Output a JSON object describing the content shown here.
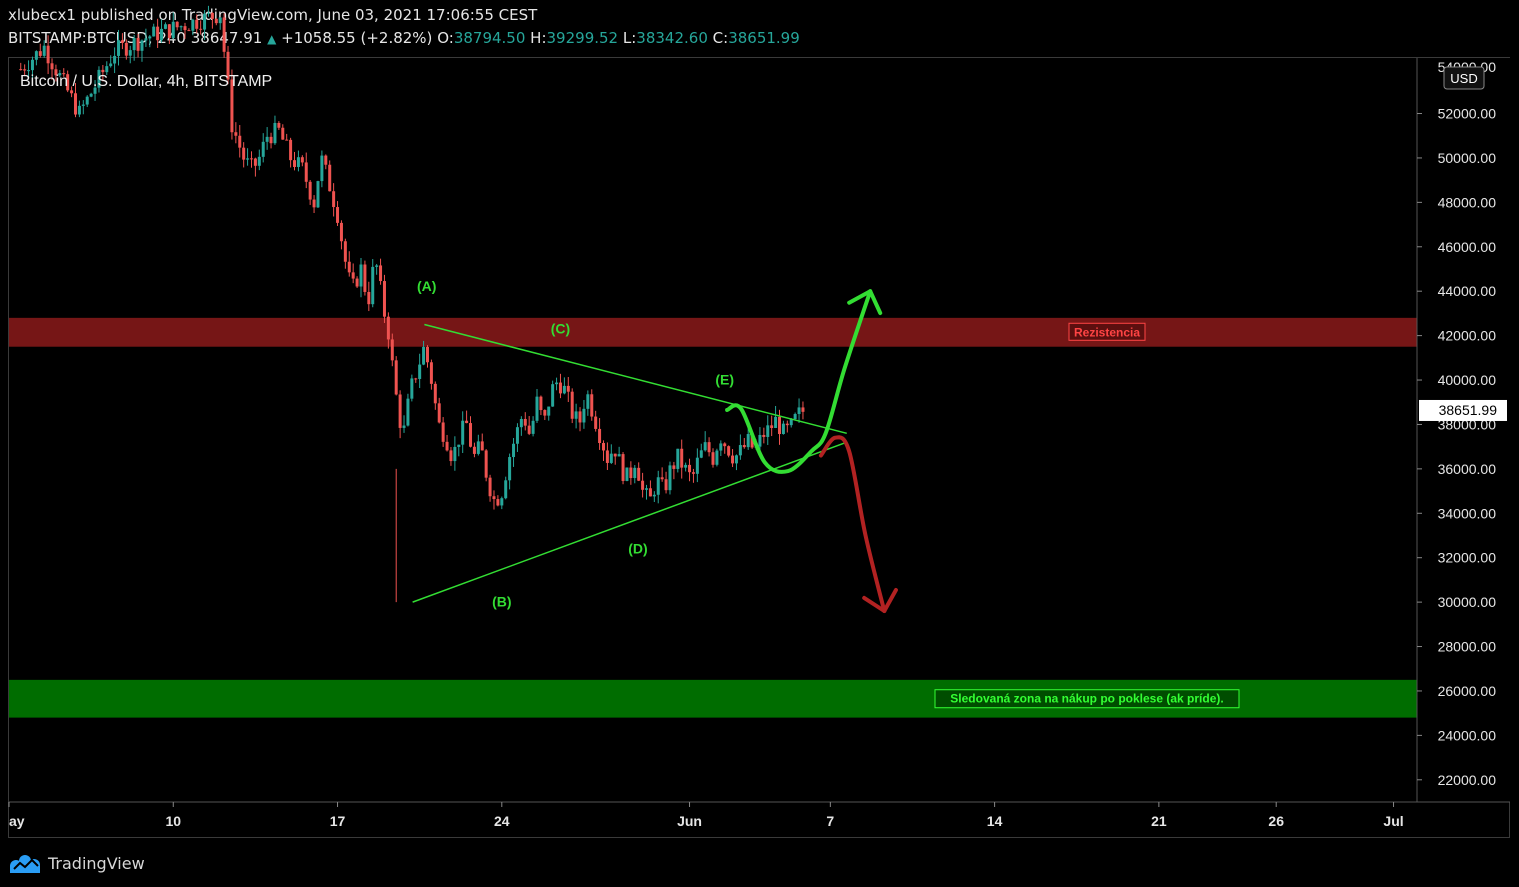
{
  "header": {
    "published": "xlubecx1 published on TradingView.com, June 03, 2021 17:06:55 CEST",
    "symbol": "BITSTAMP:BTCUSD, 240",
    "last": "38647.91",
    "arrow": "▲",
    "change": "+1058.55 (+2.82%)",
    "o_label": "O:",
    "o_value": "38794.50",
    "h_label": "H:",
    "h_value": "39299.52",
    "l_label": "L:",
    "l_value": "38342.60",
    "c_label": "C:",
    "c_value": "38651.99"
  },
  "footer": {
    "brand": "TradingView"
  },
  "chart_data": {
    "type": "candlestick",
    "title": "Bitcoin / U.S. Dollar, 4h, BITSTAMP",
    "currency": "USD",
    "y_axis": {
      "min": 21000,
      "max": 54500,
      "ticks": [
        "52000.00",
        "50000.00",
        "48000.00",
        "46000.00",
        "44000.00",
        "42000.00",
        "40000.00",
        "38000.00",
        "36000.00",
        "34000.00",
        "32000.00",
        "30000.00",
        "28000.00",
        "26000.00",
        "24000.00",
        "22000.00"
      ],
      "top_partial_tick": "54000.00"
    },
    "x_axis": {
      "start_day": 3,
      "end_day": 63,
      "ticks": [
        {
          "day": 3,
          "label": "ay"
        },
        {
          "day": 10,
          "label": "10"
        },
        {
          "day": 17,
          "label": "17"
        },
        {
          "day": 24,
          "label": "24"
        },
        {
          "day": 32,
          "label": "Jun"
        },
        {
          "day": 38,
          "label": "7"
        },
        {
          "day": 45,
          "label": "14"
        },
        {
          "day": 52,
          "label": "21"
        },
        {
          "day": 57,
          "label": "26"
        },
        {
          "day": 62,
          "label": "Jul"
        }
      ]
    },
    "price_label": "38651.99",
    "last_price": 38651.99,
    "path": [
      [
        3.5,
        54000
      ],
      [
        4.5,
        55000
      ],
      [
        6,
        52000
      ],
      [
        7.5,
        54800
      ],
      [
        9,
        55500
      ],
      [
        10.5,
        56000
      ],
      [
        12,
        56500
      ],
      [
        12.5,
        51500
      ],
      [
        13,
        50000
      ],
      [
        13.3,
        49500
      ],
      [
        13.6,
        49800
      ],
      [
        14,
        51000
      ],
      [
        14.5,
        51200
      ],
      [
        15,
        50000
      ],
      [
        15.5,
        49500
      ],
      [
        16,
        48000
      ],
      [
        16.3,
        50000
      ],
      [
        16.6,
        49000
      ],
      [
        17,
        47500
      ],
      [
        17.3,
        45500
      ],
      [
        17.6,
        44000
      ],
      [
        18,
        45000
      ],
      [
        18.3,
        43500
      ],
      [
        18.6,
        45500
      ],
      [
        19,
        43000
      ],
      [
        19.2,
        42000
      ],
      [
        19.4,
        40000
      ],
      [
        19.6,
        38500
      ],
      [
        19.8,
        37500
      ],
      [
        20.1,
        39500
      ],
      [
        20.4,
        40500
      ],
      [
        20.7,
        41500
      ],
      [
        21,
        40000
      ],
      [
        21.3,
        38000
      ],
      [
        21.6,
        37500
      ],
      [
        21.9,
        36500
      ],
      [
        22.2,
        37500
      ],
      [
        22.5,
        38000
      ],
      [
        22.8,
        36500
      ],
      [
        23.1,
        37000
      ],
      [
        23.4,
        35500
      ],
      [
        23.7,
        34500
      ],
      [
        24,
        35000
      ],
      [
        24.3,
        36500
      ],
      [
        24.6,
        37500
      ],
      [
        24.9,
        38500
      ],
      [
        25.2,
        37500
      ],
      [
        25.5,
        39000
      ],
      [
        25.8,
        38000
      ],
      [
        26.1,
        39500
      ],
      [
        26.4,
        40000
      ],
      [
        26.7,
        39500
      ],
      [
        27,
        38500
      ],
      [
        27.3,
        38000
      ],
      [
        27.6,
        39500
      ],
      [
        27.9,
        38500
      ],
      [
        28.2,
        37500
      ],
      [
        28.5,
        36500
      ],
      [
        28.8,
        37000
      ],
      [
        29.1,
        36000
      ],
      [
        29.4,
        35500
      ],
      [
        29.7,
        36500
      ],
      [
        30,
        35000
      ],
      [
        30.3,
        34500
      ],
      [
        30.6,
        35500
      ],
      [
        30.9,
        35000
      ],
      [
        31.2,
        36000
      ],
      [
        31.5,
        36500
      ],
      [
        31.8,
        36000
      ],
      [
        32.1,
        35500
      ],
      [
        32.4,
        36500
      ],
      [
        32.7,
        37000
      ],
      [
        33,
        36500
      ],
      [
        33.3,
        37500
      ],
      [
        33.6,
        37000
      ],
      [
        33.9,
        36500
      ],
      [
        34.2,
        36800
      ],
      [
        34.5,
        37200
      ],
      [
        34.8,
        36800
      ],
      [
        35.1,
        37500
      ],
      [
        35.4,
        37800
      ],
      [
        35.7,
        38200
      ],
      [
        36,
        37600
      ],
      [
        36.3,
        37800
      ],
      [
        36.6,
        38400
      ],
      [
        36.9,
        38650
      ]
    ],
    "levels": [
      {
        "name": "resistance",
        "label": "Rezistencia",
        "from": 41500,
        "to": 42800,
        "color": "#8b1a1a"
      },
      {
        "name": "buy-zone",
        "label": "Sledovaná zona na nákup po poklese (ak príde).",
        "from": 24800,
        "to": 26500,
        "color": "#008000"
      }
    ],
    "triangle": {
      "upper": [
        [
          20.7,
          42500
        ],
        [
          38.7,
          37600
        ]
      ],
      "lower": [
        [
          20.2,
          30000
        ],
        [
          38.7,
          37200
        ]
      ]
    },
    "waves": [
      {
        "label": "(A)",
        "day": 20.8,
        "price": 44000
      },
      {
        "label": "(B)",
        "day": 24.0,
        "price": 29800
      },
      {
        "label": "(C)",
        "day": 26.5,
        "price": 42100
      },
      {
        "label": "(D)",
        "day": 29.8,
        "price": 32200
      },
      {
        "label": "(E)",
        "day": 33.5,
        "price": 39800
      }
    ],
    "projection_up": {
      "color": "#33dd33",
      "points": [
        [
          33.6,
          38650
        ],
        [
          34.2,
          38700
        ],
        [
          35.2,
          36300
        ],
        [
          36.2,
          35900
        ],
        [
          37.2,
          36800
        ],
        [
          37.8,
          37600
        ],
        [
          38.6,
          40500
        ],
        [
          39.7,
          44000
        ]
      ]
    },
    "projection_down": {
      "color": "#b22222",
      "points": [
        [
          37.6,
          36600
        ],
        [
          38.2,
          37400
        ],
        [
          38.8,
          36800
        ],
        [
          39.5,
          33000
        ],
        [
          40.3,
          29600
        ]
      ]
    }
  },
  "colors": {
    "up": "#26a69a",
    "down": "#ef5350",
    "triangle": "#33dd33",
    "axis_text": "#e6e6e6",
    "resistance_label": "#ff4444",
    "buy_label": "#33ff33"
  }
}
